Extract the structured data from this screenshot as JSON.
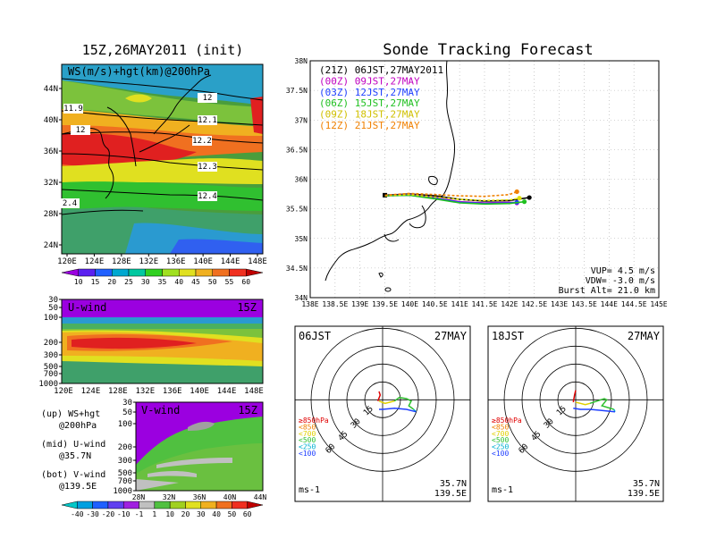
{
  "page": {
    "left_title": "15Z,26MAY2011 (init)",
    "right_title": "Sonde Tracking Forecast"
  },
  "panel_ws": {
    "label": "WS(m/s)+hgt(km)@200hPa",
    "lon_ticks": [
      "120E",
      "124E",
      "128E",
      "132E",
      "136E",
      "140E",
      "144E",
      "148E"
    ],
    "lat_ticks": [
      "44N",
      "40N",
      "36N",
      "32N",
      "28N",
      "24N"
    ],
    "contour_labels": [
      "11.9",
      "12",
      "12",
      "12.1",
      "12.2",
      "12.3",
      "12.4",
      "2.4"
    ],
    "colorbar_ticks": [
      "10",
      "15",
      "20",
      "25",
      "30",
      "35",
      "40",
      "45",
      "50",
      "55",
      "60"
    ],
    "colorbar_colors": [
      "#9b00e0",
      "#5a20f0",
      "#2060ff",
      "#00a8d0",
      "#00c8a0",
      "#30d020",
      "#a0e020",
      "#e0e020",
      "#f0b020",
      "#f07020",
      "#f03020",
      "#c00000"
    ]
  },
  "panel_u": {
    "label": "U-wind",
    "time": "15Z",
    "p_ticks": [
      "30",
      "50",
      "100",
      "200",
      "300",
      "500",
      "700",
      "1000"
    ],
    "lon_ticks": [
      "120E",
      "124E",
      "128E",
      "132E",
      "136E",
      "140E",
      "144E",
      "148E"
    ]
  },
  "panel_v": {
    "label": "V-wind",
    "time": "15Z",
    "p_ticks": [
      "30",
      "50",
      "100",
      "200",
      "300",
      "500",
      "700",
      "1000"
    ],
    "lat_ticks": [
      "28N",
      "32N",
      "36N",
      "40N",
      "44N"
    ],
    "colorbar_ticks": [
      "-40",
      "-30",
      "-20",
      "-10",
      "-1",
      "1",
      "10",
      "20",
      "30",
      "40",
      "50",
      "60"
    ],
    "colorbar_colors": [
      "#00c8c8",
      "#00a0e0",
      "#2060ff",
      "#6040f0",
      "#a020e0",
      "#c0c0c0",
      "#50c040",
      "#a0d020",
      "#e0e020",
      "#f0b020",
      "#f07020",
      "#f03020",
      "#c00000"
    ]
  },
  "legend_notes": [
    {
      "a": "(up) WS+hgt",
      "b": "@200hPa"
    },
    {
      "a": "(mid) U-wind",
      "b": "@35.7N"
    },
    {
      "a": "(bot) V-wind",
      "b": "@139.5E"
    }
  ],
  "track_map": {
    "lon_ticks": [
      "138E",
      "138.5E",
      "139E",
      "139.5E",
      "140E",
      "140.5E",
      "141E",
      "141.5E",
      "142E",
      "142.5E",
      "143E",
      "143.5E",
      "144E",
      "144.5E",
      "145E"
    ],
    "lat_ticks": [
      "38N",
      "37.5N",
      "37N",
      "36.5N",
      "36N",
      "35.5N",
      "35N",
      "34.5N",
      "34N"
    ],
    "stats": [
      "VUP= 4.5 m/s",
      "VDW= -3.0 m/s",
      "Burst Alt= 21.0 km"
    ]
  },
  "polar_left": {
    "time": "06JST",
    "date": "27MAY",
    "loc1": "35.7N",
    "loc2": "139.5E",
    "unit": "ms-1"
  },
  "polar_right": {
    "time": "18JST",
    "date": "27MAY",
    "loc1": "35.7N",
    "loc2": "139.5E",
    "unit": "ms-1"
  },
  "polar_common": {
    "ring_labels": [
      "15",
      "30",
      "45",
      "60"
    ],
    "press_legend": [
      {
        "t": "≥850hPa",
        "c": "#e00000"
      },
      {
        "t": "<850",
        "c": "#f08000"
      },
      {
        "t": "<700",
        "c": "#e0d000"
      },
      {
        "t": "<500",
        "c": "#30c030"
      },
      {
        "t": "<250",
        "c": "#00b0d0"
      },
      {
        "t": "<100",
        "c": "#2040ff"
      }
    ]
  },
  "chart_data": [
    {
      "type": "line",
      "title": "Sonde Tracking Forecast",
      "xlim": [
        138.0,
        145.0
      ],
      "ylim": [
        34.0,
        38.0
      ],
      "series": [
        {
          "name": "(21Z) 06JST,27MAY2011",
          "color": "#000000",
          "lon": [
            139.5,
            140.0,
            140.5,
            141.0,
            141.5,
            142.0,
            142.4
          ],
          "lat": [
            35.73,
            35.75,
            35.72,
            35.66,
            35.63,
            35.64,
            35.69
          ]
        },
        {
          "name": "(00Z) 09JST,27MAY",
          "color": "#c000c0",
          "lon": [
            139.5,
            140.0,
            140.5,
            141.0,
            141.5,
            142.0,
            142.15
          ],
          "lat": [
            35.72,
            35.74,
            35.69,
            35.62,
            35.6,
            35.61,
            35.6
          ]
        },
        {
          "name": "(03Z) 12JST,27MAY",
          "color": "#2040ff",
          "lon": [
            139.5,
            140.0,
            140.5,
            141.0,
            141.5,
            142.0,
            142.15
          ],
          "lat": [
            35.72,
            35.73,
            35.68,
            35.61,
            35.59,
            35.6,
            35.61
          ]
        },
        {
          "name": "(06Z) 15JST,27MAY",
          "color": "#20c020",
          "lon": [
            139.5,
            140.0,
            140.5,
            141.0,
            141.5,
            142.0,
            142.3
          ],
          "lat": [
            35.72,
            35.73,
            35.67,
            35.6,
            35.58,
            35.59,
            35.62
          ]
        },
        {
          "name": "(09Z) 18JST,27MAY",
          "color": "#e0e000",
          "lon": [
            139.5,
            140.0,
            140.5,
            141.0,
            141.5,
            142.0,
            142.2
          ],
          "lat": [
            35.72,
            35.74,
            35.7,
            35.66,
            35.64,
            35.65,
            35.68
          ]
        },
        {
          "name": "(12Z) 21JST,27MAY",
          "color": "#f08000",
          "lon": [
            139.5,
            140.0,
            140.5,
            141.0,
            141.5,
            142.0,
            142.15
          ],
          "lat": [
            35.73,
            35.76,
            35.74,
            35.72,
            35.71,
            35.74,
            35.79
          ]
        }
      ]
    },
    {
      "type": "line",
      "title": "06JST 27MAY hodograph",
      "ring_values": [
        15,
        30,
        45,
        60
      ],
      "series": [
        {
          "name": "≥850hPa",
          "color": "#e00000",
          "u": [
            -4,
            -2,
            -3
          ],
          "v": [
            -1,
            4,
            7
          ]
        },
        {
          "name": "<700",
          "color": "#e0d000",
          "u": [
            -3,
            2,
            6,
            10
          ],
          "v": [
            -1,
            -3,
            -2,
            -1
          ]
        },
        {
          "name": "<500",
          "color": "#30c030",
          "u": [
            10,
            14,
            20,
            24,
            22,
            26
          ],
          "v": [
            -1,
            2,
            1,
            -1,
            -5,
            -8
          ]
        },
        {
          "name": "<250",
          "color": "#00b0d0",
          "u": [
            26,
            28
          ],
          "v": [
            -8,
            -10
          ]
        },
        {
          "name": "<100",
          "color": "#2040ff",
          "u": [
            28,
            20,
            10,
            0,
            -3
          ],
          "v": [
            -10,
            -8,
            -7,
            -8,
            -8
          ]
        }
      ]
    },
    {
      "type": "line",
      "title": "18JST 27MAY hodograph",
      "ring_values": [
        15,
        30,
        45,
        60
      ],
      "series": [
        {
          "name": "≥850hPa",
          "color": "#e00000",
          "u": [
            -2,
            -1,
            0
          ],
          "v": [
            -2,
            4,
            8
          ]
        },
        {
          "name": "<700",
          "color": "#e0d000",
          "u": [
            0,
            4,
            8,
            12
          ],
          "v": [
            -2,
            -3,
            -4,
            -3
          ]
        },
        {
          "name": "<500",
          "color": "#30c030",
          "u": [
            12,
            18,
            24,
            26,
            22,
            32
          ],
          "v": [
            -3,
            -1,
            1,
            0,
            -5,
            -8
          ]
        },
        {
          "name": "<250",
          "color": "#00b0d0",
          "u": [
            32,
            33
          ],
          "v": [
            -8,
            -10
          ]
        },
        {
          "name": "<100",
          "color": "#2040ff",
          "u": [
            33,
            22,
            12,
            4,
            -2
          ],
          "v": [
            -10,
            -9,
            -8,
            -8,
            -7
          ]
        }
      ]
    }
  ]
}
